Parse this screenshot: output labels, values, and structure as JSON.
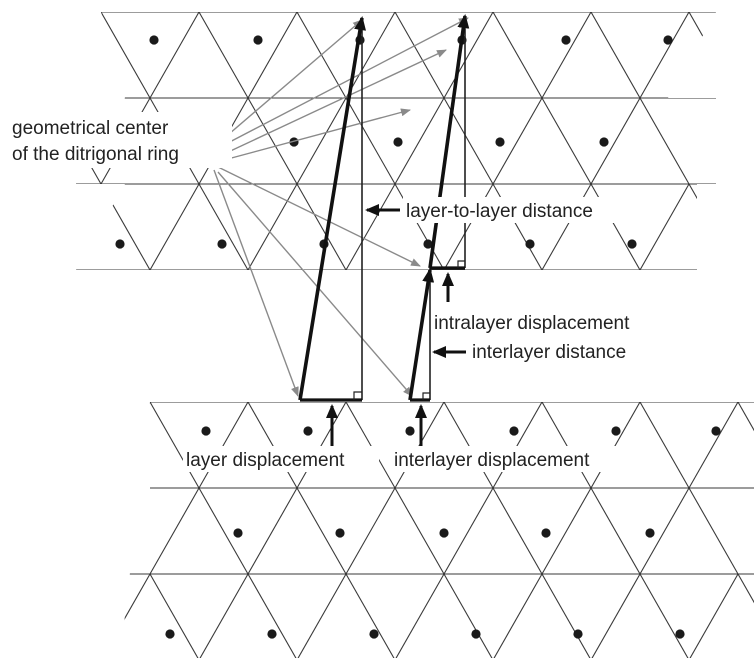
{
  "labels": {
    "geometrical_center_line1": "geometrical center",
    "geometrical_center_line2": "of the ditrigonal ring",
    "layer_to_layer_distance": "layer-to-layer distance",
    "intralayer_displacement": "intralayer displacement",
    "interlayer_distance": "interlayer distance",
    "layer_displacement": "layer displacement",
    "interlayer_displacement": "interlayer displacement"
  },
  "colors": {
    "grid": "#3a3a3a",
    "dot": "#1a1a1a",
    "leader": "#8a8a8a",
    "vector": "#111111",
    "background": "#ffffff"
  }
}
